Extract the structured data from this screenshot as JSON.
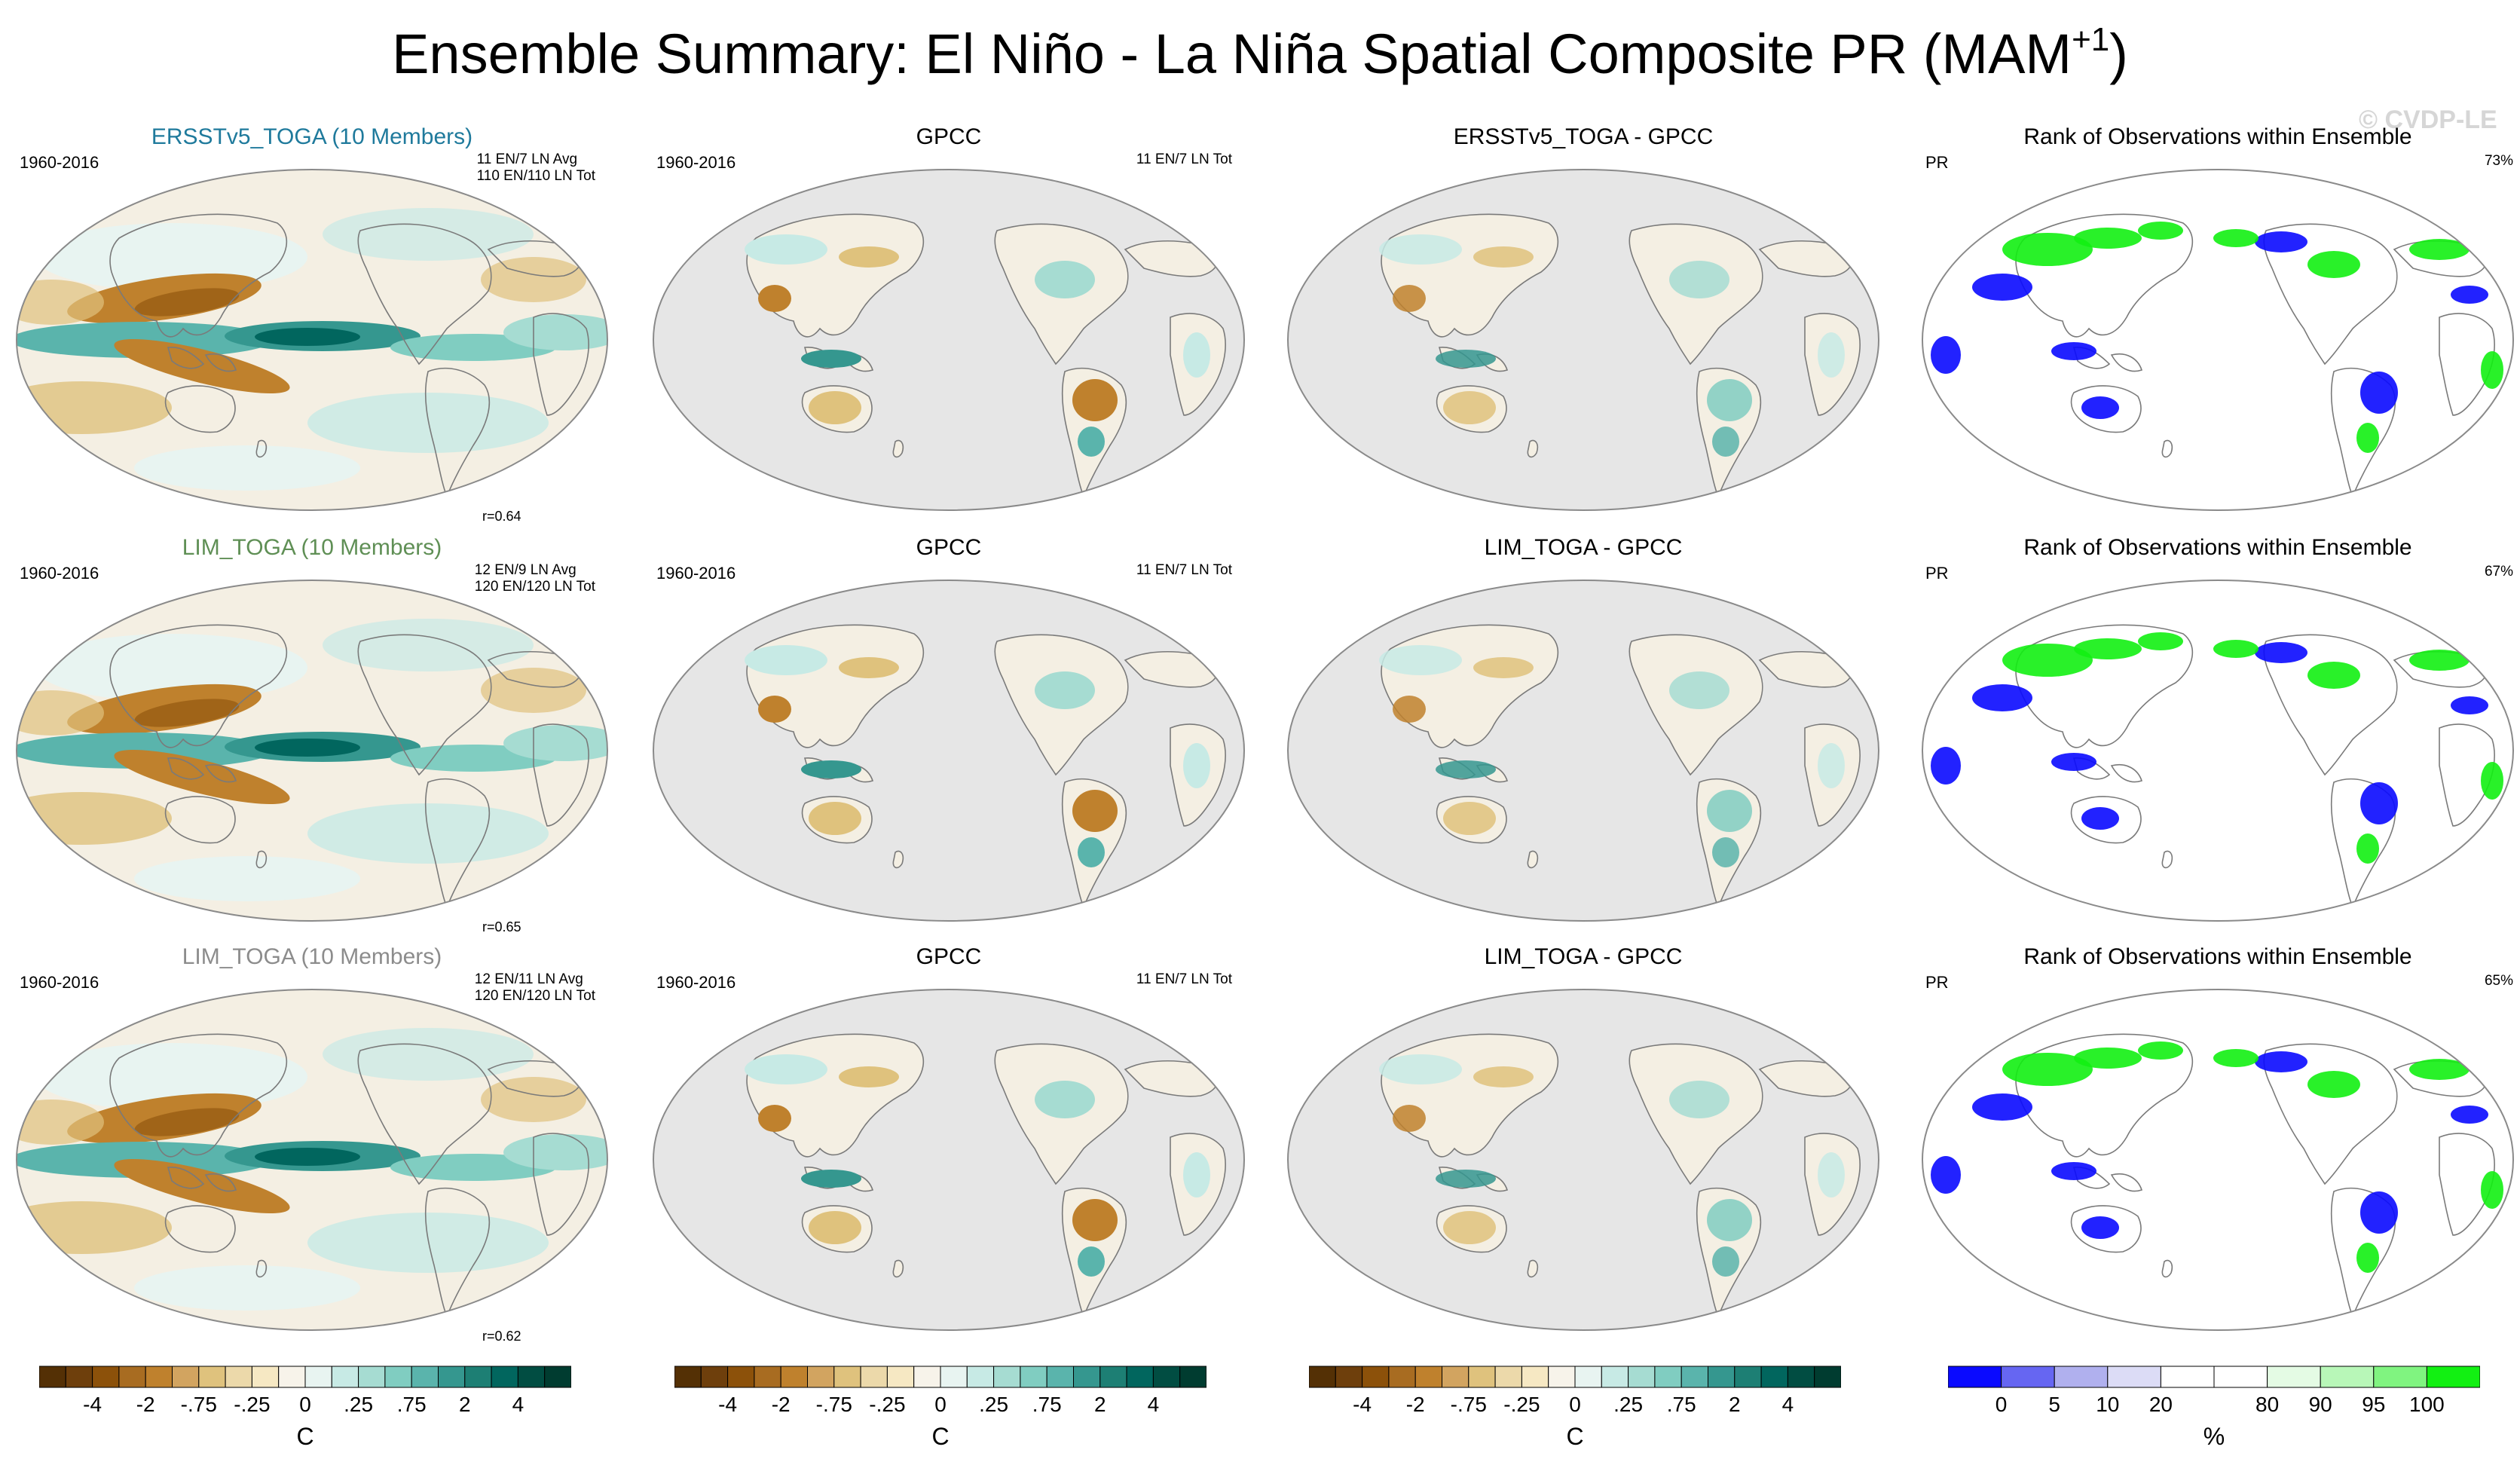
{
  "figure": {
    "title_main": "Ensemble Summary: El Niño - La Niña Spatial Composite PR (MAM",
    "title_sup": "+1",
    "title_end": ")",
    "watermark": "© CVDP-LE"
  },
  "rows": [
    {
      "model": {
        "title": "ERSSTv5_TOGA (10 Members)",
        "title_color": "#1f7a9c",
        "period": "1960-2016",
        "counts": "11 EN/7 LN Avg\n110 EN/110 LN Tot",
        "corr": "r=0.64"
      },
      "obs": {
        "title": "GPCC",
        "period": "1960-2016",
        "counts": "11 EN/7 LN Tot"
      },
      "diff": {
        "title": "ERSSTv5_TOGA - GPCC"
      },
      "rank": {
        "title": "Rank of Observations within Ensemble",
        "var": "PR",
        "pct": "73%"
      }
    },
    {
      "model": {
        "title": "LIM_TOGA (10 Members)",
        "title_color": "#5f8f55",
        "period": "1960-2016",
        "counts": "12 EN/9 LN Avg\n120 EN/120 LN Tot",
        "corr": "r=0.65"
      },
      "obs": {
        "title": "GPCC",
        "period": "1960-2016",
        "counts": "11 EN/7 LN Tot"
      },
      "diff": {
        "title": "LIM_TOGA - GPCC"
      },
      "rank": {
        "title": "Rank of Observations within Ensemble",
        "var": "PR",
        "pct": "67%"
      }
    },
    {
      "model": {
        "title": "LIM_TOGA (10 Members)",
        "title_color": "#8c8c8c",
        "period": "1960-2016",
        "counts": "12 EN/11 LN Avg\n120 EN/120 LN Tot",
        "corr": "r=0.62"
      },
      "obs": {
        "title": "GPCC",
        "period": "1960-2016",
        "counts": "11 EN/7 LN Tot"
      },
      "diff": {
        "title": "LIM_TOGA - GPCC"
      },
      "rank": {
        "title": "Rank of Observations within Ensemble",
        "var": "PR",
        "pct": "65%"
      }
    }
  ],
  "colorbars": {
    "anomaly": {
      "unit": "C",
      "colors": [
        "#543005",
        "#6e3f0c",
        "#8c510a",
        "#a86c21",
        "#bf812d",
        "#d2a460",
        "#dfc27d",
        "#ecd9aa",
        "#f6e8c3",
        "#f7f3ea",
        "#e8f4f1",
        "#c7eae5",
        "#a6dcd2",
        "#80cdc1",
        "#5ab4ac",
        "#35978f",
        "#1d7f74",
        "#01665e",
        "#014d42",
        "#003c30"
      ],
      "ticks": [
        {
          "label": "-4",
          "at": 2
        },
        {
          "label": "-2",
          "at": 4
        },
        {
          "label": "-.75",
          "at": 6
        },
        {
          "label": "-.25",
          "at": 8
        },
        {
          "label": "0",
          "at": 10
        },
        {
          "label": ".25",
          "at": 12
        },
        {
          "label": ".75",
          "at": 14
        },
        {
          "label": "2",
          "at": 16
        },
        {
          "label": "4",
          "at": 18
        }
      ]
    },
    "rank": {
      "unit": "%",
      "colors": [
        "#0a0aff",
        "#6666f2",
        "#b0b0ee",
        "#dcdcf6",
        "#ffffff",
        "#ffffff",
        "#e4fbe4",
        "#b8f7b8",
        "#80f480",
        "#12f012"
      ],
      "ticks": [
        {
          "label": "0",
          "at": 1
        },
        {
          "label": "5",
          "at": 2
        },
        {
          "label": "10",
          "at": 3
        },
        {
          "label": "20",
          "at": 4
        },
        {
          "label": "80",
          "at": 6
        },
        {
          "label": "90",
          "at": 7
        },
        {
          "label": "95",
          "at": 8
        },
        {
          "label": "100",
          "at": 9
        }
      ]
    }
  }
}
